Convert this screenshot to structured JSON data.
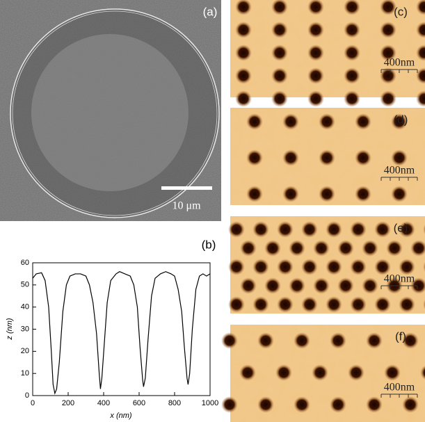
{
  "panels": {
    "a": {
      "label": "(a)",
      "scale_bar": "10 μm"
    },
    "c": {
      "label": "(c)",
      "scale_bar": "400nm"
    },
    "d": {
      "label": "(d)",
      "scale_bar": "400nm"
    },
    "e": {
      "label": "(e)",
      "scale_bar": "400nm"
    },
    "f": {
      "label": "(f)",
      "scale_bar": "400nm"
    }
  },
  "chart_data": {
    "type": "line",
    "label": "(b)",
    "x_label": "x (nm)",
    "y_label": "z (nm)",
    "x": [
      0,
      20,
      50,
      70,
      90,
      105,
      115,
      125,
      135,
      150,
      170,
      190,
      210,
      240,
      270,
      300,
      320,
      340,
      360,
      375,
      382,
      390,
      405,
      420,
      440,
      470,
      490,
      520,
      550,
      570,
      590,
      605,
      620,
      625,
      635,
      650,
      670,
      690,
      720,
      750,
      780,
      800,
      820,
      840,
      855,
      870,
      876,
      885,
      900,
      920,
      940,
      960,
      980,
      1000
    ],
    "series": [
      {
        "color": "#000000",
        "values": [
          53,
          55,
          55.5,
          52,
          40,
          20,
          5,
          1,
          3,
          15,
          38,
          50,
          54,
          55,
          55,
          54,
          50,
          42,
          28,
          10,
          3,
          8,
          25,
          42,
          52,
          55,
          56,
          55,
          54,
          50,
          40,
          22,
          7,
          4,
          8,
          25,
          45,
          53,
          55,
          56,
          55,
          54,
          48,
          38,
          22,
          8,
          5,
          10,
          30,
          48,
          54,
          55,
          54,
          55
        ]
      }
    ],
    "xlim": [
      0,
      1000
    ],
    "xticks": [
      0,
      200,
      400,
      600,
      800,
      1000
    ],
    "ylim": [
      0,
      60
    ],
    "yticks": [
      0,
      10,
      20,
      30,
      40,
      50,
      60
    ]
  }
}
